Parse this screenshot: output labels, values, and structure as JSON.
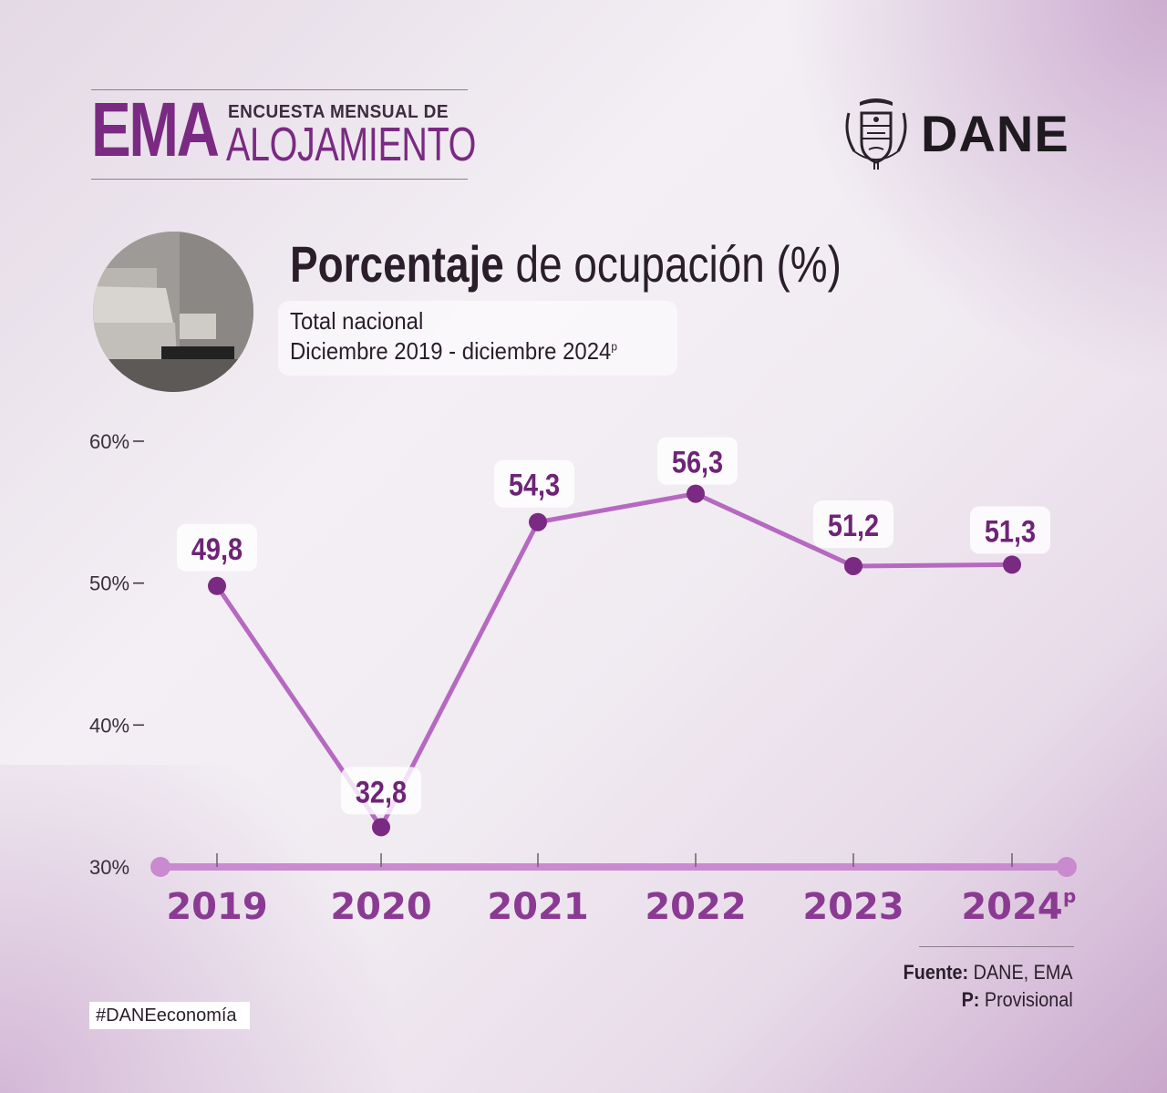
{
  "header": {
    "ema_acronym": "EMA",
    "ema_line1": "ENCUESTA MENSUAL DE",
    "ema_line2": "ALOJAMIENTO",
    "brand": "DANE"
  },
  "titles": {
    "title_bold": "Porcentaje",
    "title_rest": " de ocupación (%)",
    "subtitle_line1": "Total nacional",
    "subtitle_line2": "Diciembre 2019 - diciembre 2024",
    "subtitle_sup": "p"
  },
  "chart_data": {
    "type": "line",
    "categories": [
      "2019",
      "2020",
      "2021",
      "2022",
      "2023",
      "2024"
    ],
    "category_superscripts": [
      "",
      "",
      "",
      "",
      "",
      "p"
    ],
    "values": [
      49.8,
      32.8,
      54.3,
      56.3,
      51.2,
      51.3
    ],
    "data_labels": [
      "49,8",
      "32,8",
      "54,3",
      "56,3",
      "51,2",
      "51,3"
    ],
    "y_ticks": [
      {
        "value": 60,
        "label": "60%"
      },
      {
        "value": 50,
        "label": "50%"
      },
      {
        "value": 40,
        "label": "40%"
      },
      {
        "value": 30,
        "label": "30%"
      }
    ],
    "ylim": [
      30,
      60
    ],
    "grid": false,
    "line_color": "#b569c0",
    "marker_color": "#7a2a82",
    "axis_color": "#c98ad0"
  },
  "footer": {
    "source_label": "Fuente:",
    "source_value": " DANE, EMA",
    "note_label": "P:",
    "note_value": " Provisional",
    "hashtag_bold": "#DANE",
    "hashtag_rest": "economía"
  }
}
